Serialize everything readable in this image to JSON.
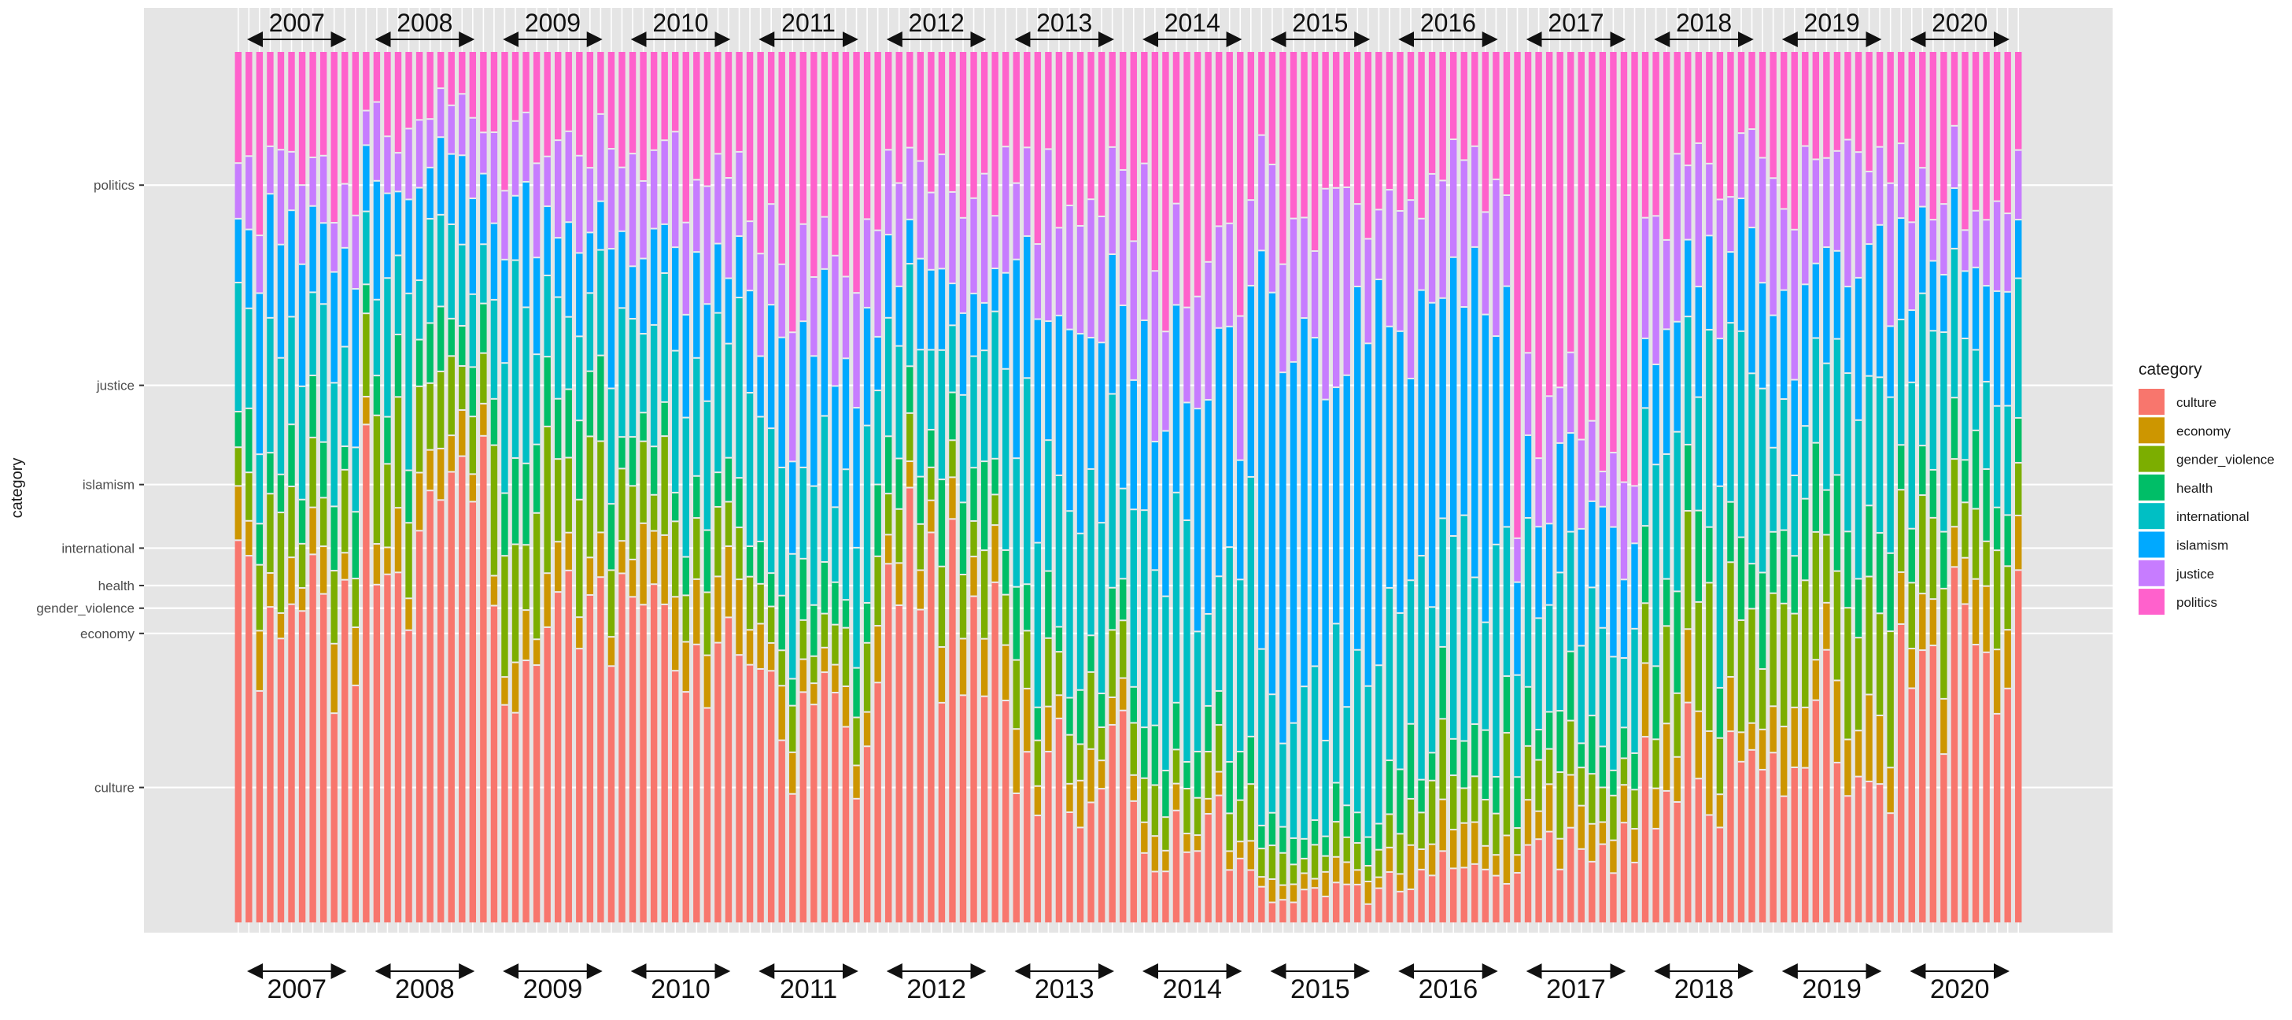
{
  "chart_data": {
    "type": "stacked-bar",
    "ylabel": "category",
    "legend": {
      "title": "category",
      "position": "right",
      "entries": [
        "culture",
        "economy",
        "gender_violence",
        "health",
        "international",
        "islamism",
        "justice",
        "politics"
      ]
    },
    "colors": {
      "culture": "#F8766D",
      "economy": "#CD9600",
      "gender_violence": "#7CAE00",
      "health": "#00BE67",
      "international": "#00BFC4",
      "islamism": "#00A9FF",
      "justice": "#C77CFF",
      "politics": "#FF61CC"
    },
    "panel_background": "#E5E5E5",
    "y_tick_labels": [
      "politics",
      "justice",
      "islamism",
      "international",
      "health",
      "gender_violence",
      "economy",
      "culture"
    ],
    "y_tick_positions": [
      0.847,
      0.617,
      0.503,
      0.43,
      0.387,
      0.361,
      0.332,
      0.155
    ],
    "years": [
      "2007",
      "2008",
      "2009",
      "2010",
      "2011",
      "2012",
      "2013",
      "2014",
      "2015",
      "2016",
      "2017",
      "2018",
      "2019",
      "2020"
    ],
    "bars_per_year": 12,
    "series_order": [
      "culture",
      "economy",
      "gender_violence",
      "health",
      "international",
      "islamism",
      "justice",
      "politics"
    ],
    "yearly_mean_shares": [
      [
        0.36,
        0.05,
        0.08,
        0.05,
        0.12,
        0.12,
        0.08,
        0.14
      ],
      [
        0.45,
        0.05,
        0.1,
        0.06,
        0.11,
        0.08,
        0.07,
        0.08
      ],
      [
        0.35,
        0.04,
        0.12,
        0.08,
        0.14,
        0.1,
        0.08,
        0.09
      ],
      [
        0.36,
        0.06,
        0.08,
        0.05,
        0.14,
        0.1,
        0.09,
        0.12
      ],
      [
        0.24,
        0.05,
        0.06,
        0.05,
        0.14,
        0.14,
        0.1,
        0.22
      ],
      [
        0.36,
        0.05,
        0.06,
        0.06,
        0.14,
        0.08,
        0.1,
        0.15
      ],
      [
        0.2,
        0.05,
        0.06,
        0.05,
        0.18,
        0.18,
        0.12,
        0.16
      ],
      [
        0.1,
        0.03,
        0.05,
        0.05,
        0.2,
        0.2,
        0.15,
        0.22
      ],
      [
        0.04,
        0.02,
        0.03,
        0.03,
        0.16,
        0.38,
        0.16,
        0.18
      ],
      [
        0.05,
        0.04,
        0.06,
        0.06,
        0.2,
        0.3,
        0.12,
        0.17
      ],
      [
        0.08,
        0.04,
        0.05,
        0.05,
        0.13,
        0.12,
        0.08,
        0.45
      ],
      [
        0.18,
        0.06,
        0.1,
        0.08,
        0.18,
        0.13,
        0.12,
        0.15
      ],
      [
        0.21,
        0.06,
        0.12,
        0.08,
        0.15,
        0.12,
        0.12,
        0.14
      ],
      [
        0.31,
        0.06,
        0.09,
        0.07,
        0.16,
        0.1,
        0.07,
        0.14
      ]
    ]
  }
}
